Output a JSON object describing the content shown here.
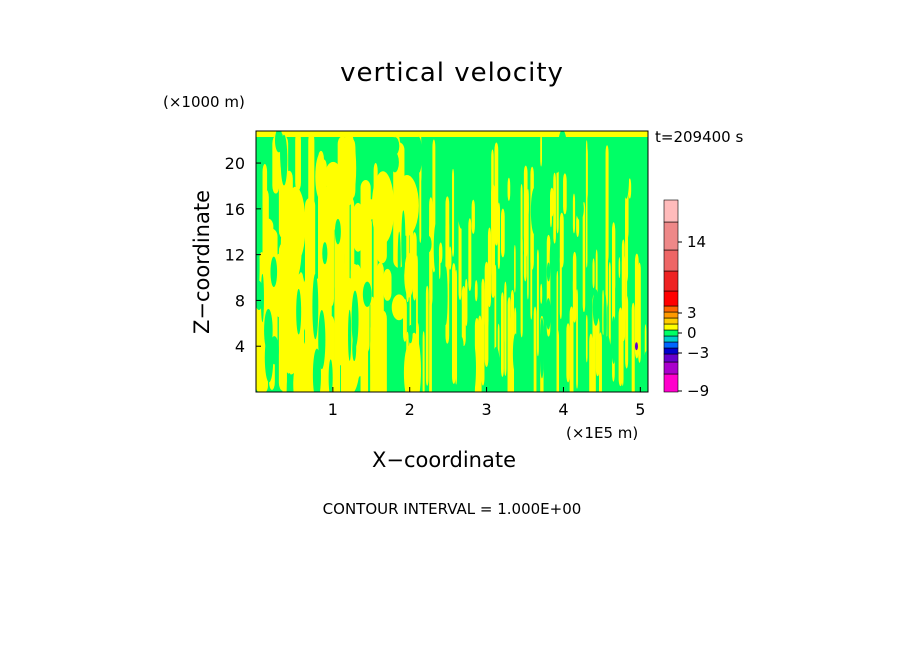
{
  "chart_data": {
    "type": "heatmap",
    "title": "vertical velocity",
    "xlabel": "X−coordinate",
    "ylabel": "Z−coordinate",
    "x_unit": "(×1E5 m)",
    "y_unit": "(×1000 m)",
    "time_label": "t=209400 s",
    "contour_interval": "CONTOUR INTERVAL = 1.000E+00",
    "xlim": [
      0,
      5.1
    ],
    "ylim": [
      0,
      22.8
    ],
    "x_ticks": [
      1,
      2,
      3,
      4,
      5
    ],
    "x_tick_labels": [
      "1",
      "2",
      "3",
      "4",
      "5"
    ],
    "y_ticks": [
      4,
      8,
      12,
      16,
      20
    ],
    "y_tick_labels": [
      "4",
      "8",
      "12",
      "16",
      "20"
    ],
    "field_levels": [
      {
        "range": "0 to 1",
        "color": "#ffff00"
      },
      {
        "range": "-1 to 0",
        "color": "#00ff66"
      }
    ],
    "colorbar": {
      "bands": [
        {
          "color": "#ff00cc"
        },
        {
          "color": "#aa00cc"
        },
        {
          "color": "#6600cc"
        },
        {
          "color": "#0000cc"
        },
        {
          "color": "#0066ff"
        },
        {
          "color": "#00cccc"
        },
        {
          "color": "#00ff66"
        },
        {
          "color": "#ffff00"
        },
        {
          "color": "#ffcc00"
        },
        {
          "color": "#ff9900"
        },
        {
          "color": "#ff6600"
        },
        {
          "color": "#ff0000"
        },
        {
          "color": "#ee2222"
        },
        {
          "color": "#ee6666"
        },
        {
          "color": "#ee8888"
        },
        {
          "color": "#ffbbbb"
        }
      ],
      "labels": [
        "14",
        "3",
        "0",
        "−3",
        "−9"
      ]
    }
  }
}
